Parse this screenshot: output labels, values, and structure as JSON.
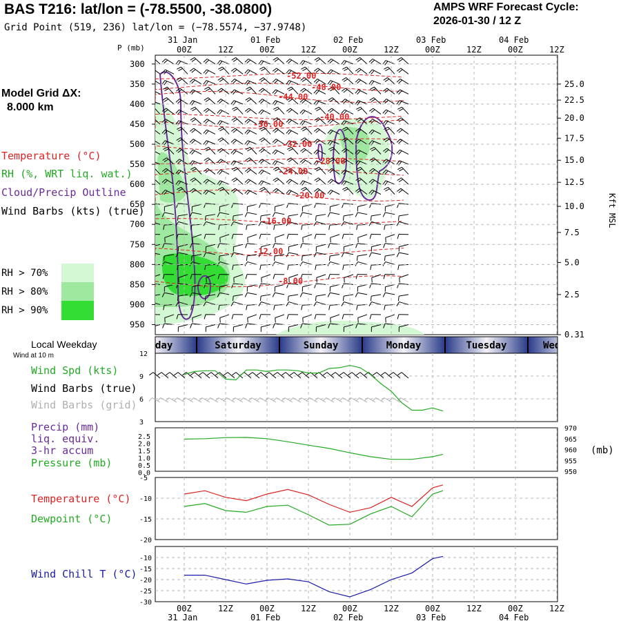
{
  "header": {
    "title": "BAS T216:  lat/lon = (-78.5500, -38.0800)",
    "subtitle": "Grid Point (519, 236) lat/lon = (−78.5574, −37.9748)",
    "cycle_label": "AMPS WRF Forecast Cycle:",
    "cycle_value": "2026-01-30 / 12  Z"
  },
  "sidebar": {
    "grid_label": "Model Grid ΔX:",
    "grid_value": "8.000 km",
    "legend": [
      {
        "text": "Temperature (°C)",
        "color": "#dd2222"
      },
      {
        "text": "RH (%, WRT liq. wat.)",
        "color": "#22aa22"
      },
      {
        "text": "Cloud/Precip Outline",
        "color": "#6a2a9a"
      },
      {
        "text": "Wind Barbs (kts) (true)",
        "color": "#000000"
      }
    ],
    "rh_levels": [
      {
        "text": "RH > 70%",
        "color": "#d4f7d4"
      },
      {
        "text": "RH > 80%",
        "color": "#9fe89f"
      },
      {
        "text": "RH > 90%",
        "color": "#33dd33"
      }
    ]
  },
  "time_axis": {
    "tick_labels": [
      "00Z",
      "12Z",
      "00Z",
      "12Z",
      "00Z",
      "12Z",
      "00Z",
      "12Z",
      "00Z",
      "12Z"
    ],
    "date_labels": [
      "31 Jan",
      "01 Feb",
      "02 Feb",
      "03 Feb",
      "04 Feb"
    ],
    "weekday_title": "Local Weekday",
    "wind_level": "Wind at 10 m",
    "weekdays": [
      "Friday",
      "Saturday",
      "Sunday",
      "Monday",
      "Tuesday",
      "Wednesday"
    ]
  },
  "colors": {
    "temperature": "#dd2222",
    "rh": "#22aa22",
    "cloud": "#6a2a9a",
    "wind_chill": "#1a1aaa",
    "grid": "#b8b8b8"
  },
  "chart_data": [
    {
      "type": "heatmap",
      "ylabel": "P (mb)",
      "y2label": "Kft MSL",
      "yticks_mb": [
        300,
        350,
        400,
        450,
        500,
        550,
        600,
        650,
        700,
        750,
        800,
        850,
        900,
        950
      ],
      "y2ticks": [
        {
          "label": "25.0",
          "mb": 350
        },
        {
          "label": "22.5",
          "mb": 390
        },
        {
          "label": "20.0",
          "mb": 435
        },
        {
          "label": "17.5",
          "mb": 485
        },
        {
          "label": "15.0",
          "mb": 540
        },
        {
          "label": "12.5",
          "mb": 595
        },
        {
          "label": "10.0",
          "mb": 655
        },
        {
          "label": "7.5",
          "mb": 720
        },
        {
          "label": "5.0",
          "mb": 795
        },
        {
          "label": "2.5",
          "mb": 875
        },
        {
          "label": "0.31",
          "mb": 975
        }
      ],
      "temperature_contours": [
        {
          "label": "-52.00",
          "mb": 330,
          "x": 2.8
        },
        {
          "label": "-48.00",
          "mb": 358,
          "x": 3.4
        },
        {
          "label": "-44.00",
          "mb": 382,
          "x": 2.6
        },
        {
          "label": "-40.00",
          "mb": 432,
          "x": 3.6
        },
        {
          "label": "-36.00",
          "mb": 450,
          "x": 2.0
        },
        {
          "label": "-32.00",
          "mb": 500,
          "x": 2.7
        },
        {
          "label": "-28.00",
          "mb": 542,
          "x": 3.5
        },
        {
          "label": "-24.00",
          "mb": 568,
          "x": 2.6
        },
        {
          "label": "-20.00",
          "mb": 628,
          "x": 3.0
        },
        {
          "label": "-16.00",
          "mb": 692,
          "x": 2.2
        },
        {
          "label": "-12.00",
          "mb": 768,
          "x": 2.0
        },
        {
          "label": "-8.00",
          "mb": 842,
          "x": 2.6
        }
      ]
    },
    {
      "type": "line",
      "yticks": [
        12,
        9,
        6,
        3
      ],
      "ylim": [
        3,
        12
      ],
      "series": [
        {
          "name": "Wind Spd (kts)",
          "color": "#22aa22",
          "x": [
            0,
            0.25,
            0.5,
            0.75,
            1,
            1.25,
            1.5,
            1.75,
            2,
            2.25,
            2.5,
            2.75,
            3,
            3.25,
            3.5,
            3.75,
            4,
            4.25,
            4.5,
            4.75,
            5,
            5.25,
            5.5,
            5.75,
            6,
            6.25
          ],
          "values": [
            9.2,
            9.6,
            9.7,
            9.7,
            8.6,
            8.5,
            9.8,
            9.8,
            9.6,
            9.8,
            9.8,
            9.7,
            9.4,
            9.4,
            10.0,
            10.1,
            10.4,
            10.1,
            9.2,
            8.0,
            7.0,
            5.5,
            4.5,
            4.5,
            4.8,
            4.4
          ]
        },
        {
          "name": "Wind Barbs (true)",
          "color": "#000000"
        },
        {
          "name": "Wind Barbs (grid)",
          "color": "#b0b0b0"
        }
      ]
    },
    {
      "type": "line",
      "left_ticks": [
        "2.5",
        "2.0",
        "1.5",
        "1.0",
        "0.5",
        "0.0"
      ],
      "right_ticks": [
        "970",
        "965",
        "960",
        "955",
        "950"
      ],
      "right_label": "(mb)",
      "ylim": [
        950,
        970
      ],
      "series": [
        {
          "name": "Precip (mm)",
          "color": "#6a2a9a"
        },
        {
          "name": "Pressure (mb)",
          "color": "#22aa22",
          "x": [
            0,
            0.5,
            1,
            1.5,
            2,
            2.5,
            3,
            3.5,
            4,
            4.5,
            5,
            5.5,
            6,
            6.25
          ],
          "values": [
            964.8,
            965.0,
            965.5,
            965.6,
            965.0,
            963.6,
            962.0,
            960.5,
            958.5,
            956.7,
            955.5,
            955.5,
            956.7,
            957.8
          ]
        }
      ],
      "legend_lines": [
        "Precip (mm)",
        "liq. equiv.",
        "3-hr accum",
        "Pressure (mb)"
      ]
    },
    {
      "type": "line",
      "yticks": [
        -5,
        -10,
        -15,
        -20
      ],
      "ylim": [
        -20,
        -5
      ],
      "series": [
        {
          "name": "Temperature (°C)",
          "color": "#dd2222",
          "x": [
            0,
            0.5,
            1,
            1.5,
            2,
            2.5,
            3,
            3.5,
            4,
            4.5,
            5,
            5.5,
            6,
            6.25
          ],
          "values": [
            -9.0,
            -8.2,
            -9.8,
            -10.6,
            -9.0,
            -7.9,
            -9.2,
            -11.5,
            -13.4,
            -12.3,
            -9.8,
            -12.0,
            -7.5,
            -6.8
          ]
        },
        {
          "name": "Dewpoint (°C)",
          "color": "#22aa22",
          "x": [
            0,
            0.5,
            1,
            1.5,
            2,
            2.5,
            3,
            3.5,
            4,
            4.5,
            5,
            5.5,
            6,
            6.25
          ],
          "values": [
            -12.0,
            -11.3,
            -13.0,
            -13.4,
            -12.0,
            -11.7,
            -14.0,
            -16.5,
            -16.3,
            -13.8,
            -12.0,
            -14.5,
            -9.0,
            -8.2
          ]
        }
      ]
    },
    {
      "type": "line",
      "yticks": [
        -10,
        -15,
        -20,
        -25,
        -30
      ],
      "ylim": [
        -30,
        -5
      ],
      "series": [
        {
          "name": "Wind Chill T (°C)",
          "color": "#1a1aaa",
          "x": [
            0,
            0.5,
            1,
            1.5,
            2,
            2.5,
            3,
            3.5,
            4,
            4.5,
            5,
            5.5,
            6,
            6.25
          ],
          "values": [
            -18.0,
            -18.0,
            -20.0,
            -22.0,
            -20.3,
            -19.7,
            -21.0,
            -25.5,
            -27.8,
            -24.5,
            -20.0,
            -17.0,
            -10.5,
            -9.5
          ]
        }
      ]
    }
  ]
}
